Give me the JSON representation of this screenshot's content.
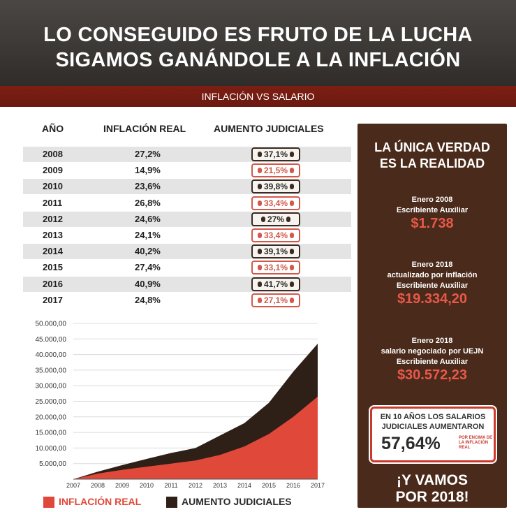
{
  "header": {
    "line1": "LO CONSEGUIDO ES FRUTO DE LA LUCHA",
    "line2": "SIGAMOS GANÁNDOLE A LA INFLACIÓN"
  },
  "subheader": "INFLACIÓN VS SALARIO",
  "table": {
    "columns": [
      "AÑO",
      "INFLACIÓN REAL",
      "AUMENTO JUDICIALES"
    ],
    "rows": [
      {
        "year": "2008",
        "inflacion": "27,2%",
        "aumento": "37,1%"
      },
      {
        "year": "2009",
        "inflacion": "14,9%",
        "aumento": "21,5%"
      },
      {
        "year": "2010",
        "inflacion": "23,6%",
        "aumento": "39,8%"
      },
      {
        "year": "2011",
        "inflacion": "26,8%",
        "aumento": "33,4%"
      },
      {
        "year": "2012",
        "inflacion": "24,6%",
        "aumento": "27%"
      },
      {
        "year": "2013",
        "inflacion": "24,1%",
        "aumento": "33,4%"
      },
      {
        "year": "2014",
        "inflacion": "40,2%",
        "aumento": "39,1%"
      },
      {
        "year": "2015",
        "inflacion": "27,4%",
        "aumento": "33,1%"
      },
      {
        "year": "2016",
        "inflacion": "40,9%",
        "aumento": "41,7%"
      },
      {
        "year": "2017",
        "inflacion": "24,8%",
        "aumento": "27,1%"
      }
    ]
  },
  "chart_data": {
    "type": "area",
    "x": [
      2007,
      2008,
      2009,
      2010,
      2011,
      2012,
      2013,
      2014,
      2015,
      2016,
      2017
    ],
    "x_tick_labels": [
      "2007",
      "2008",
      "2009",
      "2010",
      "2011",
      "2012",
      "2013",
      "2014",
      "2015",
      "2016",
      "2017"
    ],
    "y_tick_labels": [
      "5.000,00",
      "10.000,00",
      "15.000,00",
      "20.000,00",
      "25.000,00",
      "30.000,00",
      "35.000,00",
      "40.000,00",
      "45.000,00",
      "50.000,00"
    ],
    "y_ticks": [
      5000,
      10000,
      15000,
      20000,
      25000,
      30000,
      35000,
      40000,
      45000,
      50000
    ],
    "ylim": [
      0,
      50000
    ],
    "series": [
      {
        "name": "AUMENTO JUDICIALES",
        "color": "#2e1f17",
        "values": [
          0,
          2400,
          4500,
          6500,
          8400,
          10000,
          14000,
          18000,
          24500,
          34500,
          43500
        ]
      },
      {
        "name": "INFLACIÓN REAL",
        "color": "#e0483a",
        "values": [
          0,
          1800,
          3000,
          4000,
          5000,
          6000,
          7800,
          10500,
          14500,
          20000,
          26500
        ]
      }
    ],
    "legend": "bottom"
  },
  "legend": {
    "inflacion": "INFLACIÓN REAL",
    "aumento": "AUMENTO JUDICIALES"
  },
  "panel": {
    "title1": "LA ÚNICA VERDAD",
    "title2": "ES LA REALIDAD",
    "block1": {
      "l1": "Enero 2008",
      "l2": "Escribiente Auxiliar",
      "value": "$1.738"
    },
    "block2": {
      "l1": "Enero 2018",
      "l2": "actualizado por inflación",
      "l3": "Escribiente Auxiliar",
      "value": "$19.334,20"
    },
    "block3": {
      "l1": "Enero 2018",
      "l2": "salario negociado por UEJN",
      "l3": "Escribiente Auxiliar",
      "value": "$30.572,23"
    },
    "badge": {
      "line1": "EN 10 AÑOS LOS SALARIOS",
      "line2": "JUDICIALES AUMENTARON",
      "value": "57,64%",
      "note": "POR ENCIMA DE LA INFLACIÓN REAL"
    },
    "closing1": "¡Y VAMOS",
    "closing2": "POR 2018!"
  },
  "colors": {
    "header_bg": "#3b3835",
    "subbar": "#6a1a11",
    "panel_bg": "#4a2a1a",
    "accent_red": "#e8594a",
    "dark_brown": "#2e1f17"
  }
}
